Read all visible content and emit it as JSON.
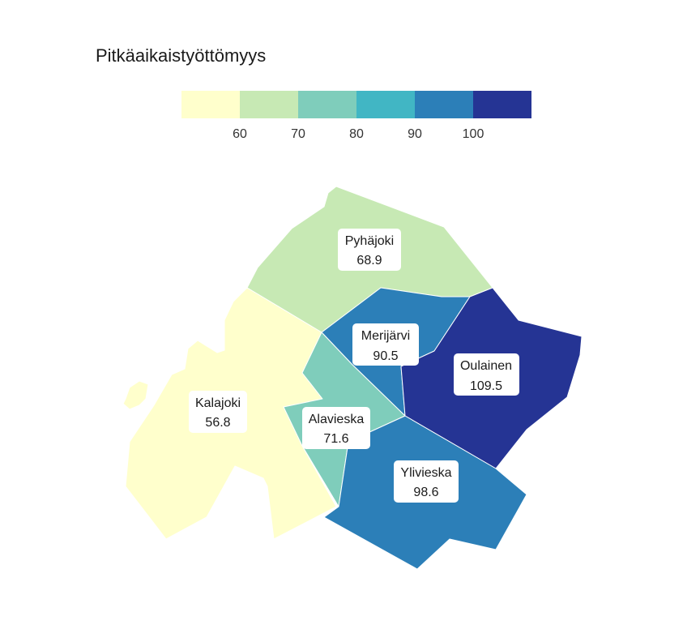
{
  "legend": {
    "title": "Pitkäaikaistyöttömyys",
    "bins": [
      {
        "color": "#ffffcc"
      },
      {
        "color": "#c7e9b4"
      },
      {
        "color": "#7fcdbb"
      },
      {
        "color": "#41b6c4"
      },
      {
        "color": "#2c7fb8"
      },
      {
        "color": "#253494"
      }
    ],
    "ticks": [
      "60",
      "70",
      "80",
      "90",
      "100"
    ]
  },
  "regions": [
    {
      "id": "pyhajoki",
      "name": "Pyhäjoki",
      "value_label": "68.9",
      "value": 68.9,
      "color": "#c7e9b4"
    },
    {
      "id": "kalajoki",
      "name": "Kalajoki",
      "value_label": "56.8",
      "value": 56.8,
      "color": "#ffffcc"
    },
    {
      "id": "merijarvi",
      "name": "Merijärvi",
      "value_label": "90.5",
      "value": 90.5,
      "color": "#2c7fb8"
    },
    {
      "id": "oulainen",
      "name": "Oulainen",
      "value_label": "109.5",
      "value": 109.5,
      "color": "#253494"
    },
    {
      "id": "alavieska",
      "name": "Alavieska",
      "value_label": "71.6",
      "value": 71.6,
      "color": "#7fcdbb"
    },
    {
      "id": "ylivieska",
      "name": "Ylivieska",
      "value_label": "98.6",
      "value": 98.6,
      "color": "#2c7fb8"
    }
  ]
}
